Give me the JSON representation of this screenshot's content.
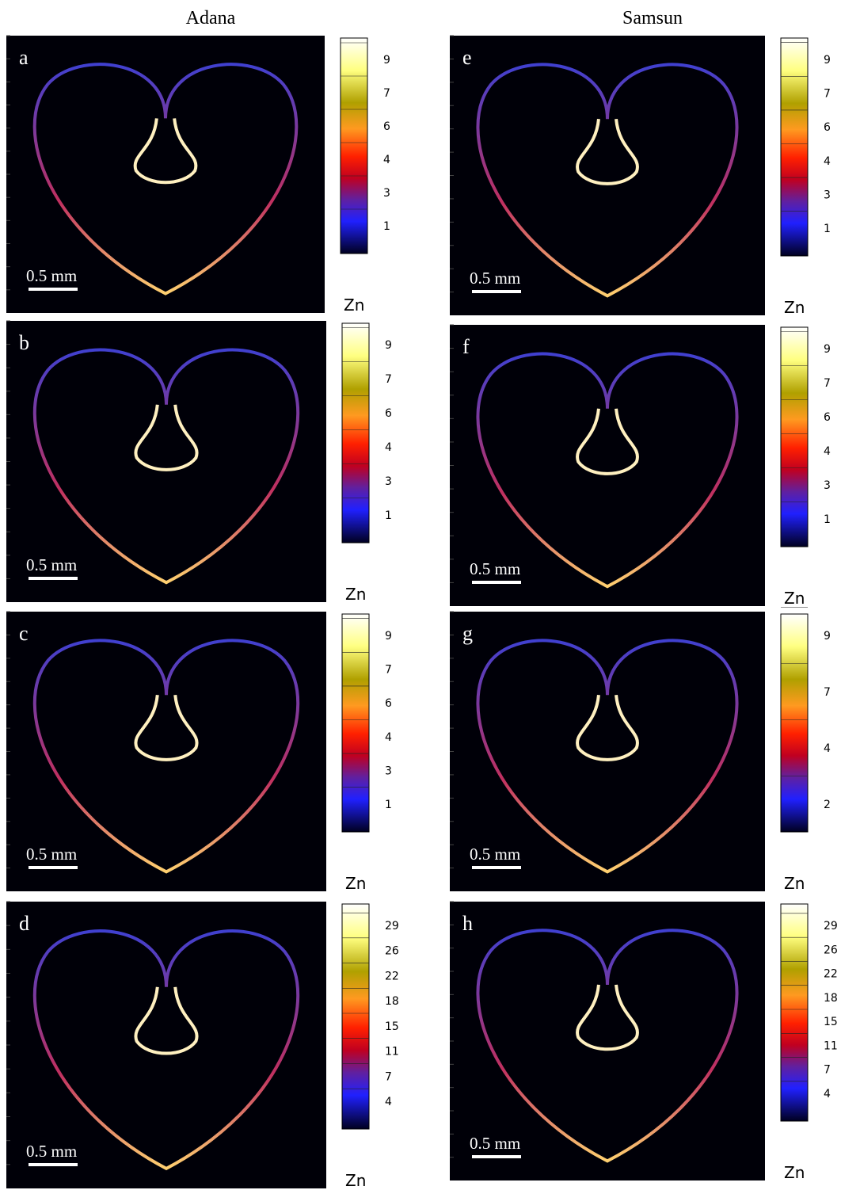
{
  "columns": [
    "Adana",
    "Samsun"
  ],
  "panels": [
    {
      "letter": "a",
      "scale": "0.5 mm",
      "colorbar": [
        9,
        7,
        6,
        4,
        3,
        1
      ],
      "element": "Zn"
    },
    {
      "letter": "b",
      "scale": "0.5 mm",
      "colorbar": [
        9,
        7,
        6,
        4,
        3,
        1
      ],
      "element": "Zn"
    },
    {
      "letter": "c",
      "scale": "0.5 mm",
      "colorbar": [
        9,
        7,
        6,
        4,
        3,
        1
      ],
      "element": "Zn"
    },
    {
      "letter": "d",
      "scale": "0.5 mm",
      "colorbar": [
        29,
        26,
        22,
        18,
        15,
        11,
        7,
        4
      ],
      "element": "Zn"
    },
    {
      "letter": "e",
      "scale": "0.5 mm",
      "colorbar": [
        9,
        7,
        6,
        4,
        3,
        1
      ],
      "element": "Zn"
    },
    {
      "letter": "f",
      "scale": "0.5 mm",
      "colorbar": [
        9,
        7,
        6,
        4,
        3,
        1
      ],
      "element": "Zn"
    },
    {
      "letter": "g",
      "scale": "0.5 mm",
      "colorbar": [
        9,
        7,
        4,
        2
      ],
      "element": "Zn"
    },
    {
      "letter": "h",
      "scale": "0.5 mm",
      "colorbar": [
        29,
        26,
        22,
        18,
        15,
        11,
        7,
        4
      ],
      "element": "Zn"
    }
  ]
}
